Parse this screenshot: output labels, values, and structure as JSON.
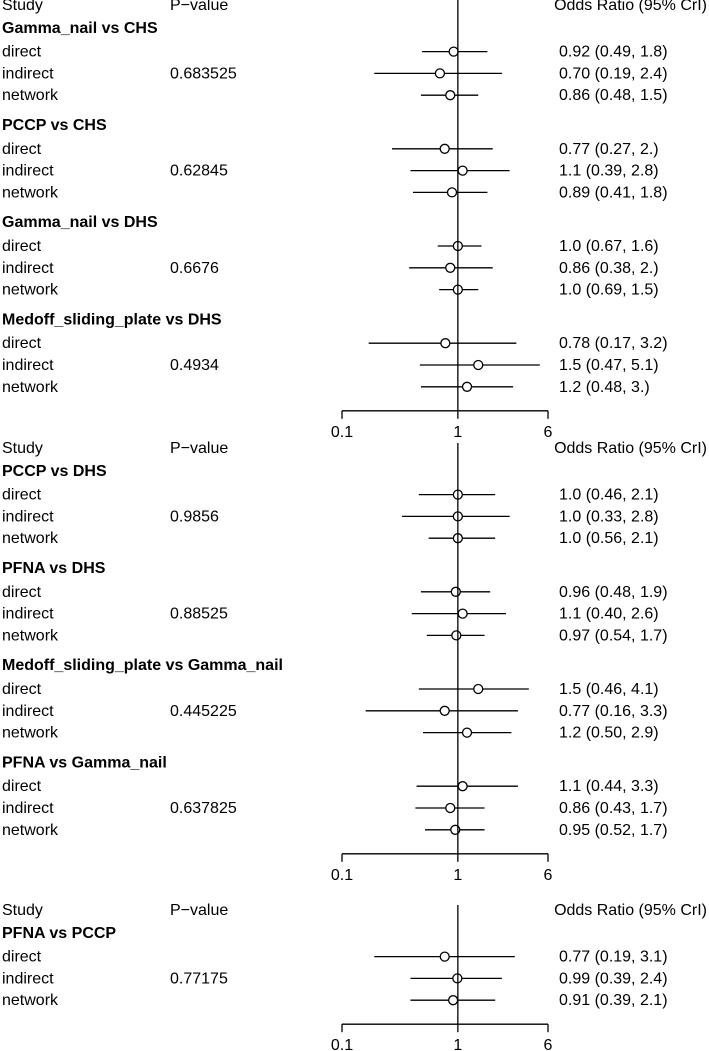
{
  "headers": {
    "study": "Study",
    "pvalue": "P−value",
    "or": "Odds Ratio (95% CrI)"
  },
  "colors": {
    "background": "#ffffff",
    "ink": "#000000",
    "marker_fill": "#ffffff"
  },
  "chart_data": [
    {
      "type": "forest",
      "x_scale": "log",
      "xlim": [
        0.1,
        6
      ],
      "x_ticks": [
        "0.1",
        "1",
        "6"
      ],
      "reference_line": 1,
      "groups": [
        {
          "title": "Gamma_nail vs CHS",
          "pvalue": "0.683525",
          "rows": [
            {
              "label": "direct",
              "or": 0.92,
              "lo": 0.49,
              "hi": 1.8,
              "text": "0.92 (0.49, 1.8)"
            },
            {
              "label": "indirect",
              "or": 0.7,
              "lo": 0.19,
              "hi": 2.4,
              "text": "0.70 (0.19, 2.4)"
            },
            {
              "label": "network",
              "or": 0.86,
              "lo": 0.48,
              "hi": 1.5,
              "text": "0.86 (0.48, 1.5)"
            }
          ]
        },
        {
          "title": "PCCP vs CHS",
          "pvalue": "0.62845",
          "rows": [
            {
              "label": "direct",
              "or": 0.77,
              "lo": 0.27,
              "hi": 2.0,
              "text": "0.77 (0.27,  2.)"
            },
            {
              "label": "indirect",
              "or": 1.1,
              "lo": 0.39,
              "hi": 2.8,
              "text": "1.1 (0.39, 2.8)"
            },
            {
              "label": "network",
              "or": 0.89,
              "lo": 0.41,
              "hi": 1.8,
              "text": "0.89 (0.41, 1.8)"
            }
          ]
        },
        {
          "title": "Gamma_nail vs DHS",
          "pvalue": "0.6676",
          "rows": [
            {
              "label": "direct",
              "or": 1.0,
              "lo": 0.67,
              "hi": 1.6,
              "text": "1.0 (0.67, 1.6)"
            },
            {
              "label": "indirect",
              "or": 0.86,
              "lo": 0.38,
              "hi": 2.0,
              "text": "0.86 (0.38,  2.)"
            },
            {
              "label": "network",
              "or": 1.0,
              "lo": 0.69,
              "hi": 1.5,
              "text": "1.0 (0.69, 1.5)"
            }
          ]
        },
        {
          "title": "Medoff_sliding_plate vs DHS",
          "pvalue": "0.4934",
          "rows": [
            {
              "label": "direct",
              "or": 0.78,
              "lo": 0.17,
              "hi": 3.2,
              "text": "0.78 (0.17, 3.2)"
            },
            {
              "label": "indirect",
              "or": 1.5,
              "lo": 0.47,
              "hi": 5.1,
              "text": "1.5 (0.47, 5.1)"
            },
            {
              "label": "network",
              "or": 1.2,
              "lo": 0.48,
              "hi": 3.0,
              "text": "1.2 (0.48,  3.)"
            }
          ]
        }
      ]
    },
    {
      "type": "forest",
      "x_scale": "log",
      "xlim": [
        0.1,
        6
      ],
      "x_ticks": [
        "0.1",
        "1",
        "6"
      ],
      "reference_line": 1,
      "groups": [
        {
          "title": "PCCP vs DHS",
          "pvalue": "0.9856",
          "rows": [
            {
              "label": "direct",
              "or": 1.0,
              "lo": 0.46,
              "hi": 2.1,
              "text": "1.0 (0.46, 2.1)"
            },
            {
              "label": "indirect",
              "or": 1.0,
              "lo": 0.33,
              "hi": 2.8,
              "text": "1.0 (0.33, 2.8)"
            },
            {
              "label": "network",
              "or": 1.0,
              "lo": 0.56,
              "hi": 2.1,
              "text": "1.0 (0.56, 2.1)"
            }
          ]
        },
        {
          "title": "PFNA vs DHS",
          "pvalue": "0.88525",
          "rows": [
            {
              "label": "direct",
              "or": 0.96,
              "lo": 0.48,
              "hi": 1.9,
              "text": "0.96 (0.48, 1.9)"
            },
            {
              "label": "indirect",
              "or": 1.1,
              "lo": 0.4,
              "hi": 2.6,
              "text": "1.1 (0.40, 2.6)"
            },
            {
              "label": "network",
              "or": 0.97,
              "lo": 0.54,
              "hi": 1.7,
              "text": "0.97 (0.54, 1.7)"
            }
          ]
        },
        {
          "title": "Medoff_sliding_plate vs Gamma_nail",
          "pvalue": "0.445225",
          "rows": [
            {
              "label": "direct",
              "or": 1.5,
              "lo": 0.46,
              "hi": 4.1,
              "text": "1.5 (0.46, 4.1)"
            },
            {
              "label": "indirect",
              "or": 0.77,
              "lo": 0.16,
              "hi": 3.3,
              "text": "0.77 (0.16, 3.3)"
            },
            {
              "label": "network",
              "or": 1.2,
              "lo": 0.5,
              "hi": 2.9,
              "text": "1.2 (0.50, 2.9)"
            }
          ]
        },
        {
          "title": "PFNA vs Gamma_nail",
          "pvalue": "0.637825",
          "rows": [
            {
              "label": "direct",
              "or": 1.1,
              "lo": 0.44,
              "hi": 3.3,
              "text": "1.1 (0.44, 3.3)"
            },
            {
              "label": "indirect",
              "or": 0.86,
              "lo": 0.43,
              "hi": 1.7,
              "text": "0.86 (0.43, 1.7)"
            },
            {
              "label": "network",
              "or": 0.95,
              "lo": 0.52,
              "hi": 1.7,
              "text": "0.95 (0.52, 1.7)"
            }
          ]
        }
      ]
    },
    {
      "type": "forest",
      "x_scale": "log",
      "xlim": [
        0.1,
        6
      ],
      "x_ticks": [
        "0.1",
        "1",
        "6"
      ],
      "reference_line": 1,
      "groups": [
        {
          "title": "PFNA vs PCCP",
          "pvalue": "0.77175",
          "rows": [
            {
              "label": "direct",
              "or": 0.77,
              "lo": 0.19,
              "hi": 3.1,
              "text": "0.77 (0.19, 3.1)"
            },
            {
              "label": "indirect",
              "or": 0.99,
              "lo": 0.39,
              "hi": 2.4,
              "text": "0.99 (0.39, 2.4)"
            },
            {
              "label": "network",
              "or": 0.91,
              "lo": 0.39,
              "hi": 2.1,
              "text": "0.91 (0.39, 2.1)"
            }
          ]
        }
      ]
    }
  ]
}
